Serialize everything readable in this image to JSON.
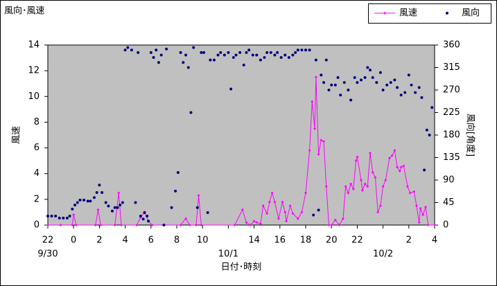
{
  "chart_data": {
    "type": "line",
    "title": "風向･風速",
    "xlabel": "日付･時刻",
    "ylabel": "風速",
    "y2label": "風向[角度]",
    "xlim": [
      0,
      30
    ],
    "ylim": [
      0,
      14
    ],
    "y2lim": [
      0,
      360
    ],
    "xticks": [
      {
        "value": 0,
        "label": "22"
      },
      {
        "value": 2,
        "label": "0"
      },
      {
        "value": 4,
        "label": "2"
      },
      {
        "value": 6,
        "label": "4"
      },
      {
        "value": 8,
        "label": "6"
      },
      {
        "value": 10,
        "label": "8"
      },
      {
        "value": 12,
        "label": "10"
      },
      {
        "value": 16,
        "label": "14"
      },
      {
        "value": 18,
        "label": "16"
      },
      {
        "value": 20,
        "label": "18"
      },
      {
        "value": 22,
        "label": "20"
      },
      {
        "value": 24,
        "label": "22"
      },
      {
        "value": 28,
        "label": "2"
      },
      {
        "value": 30,
        "label": "4"
      }
    ],
    "date_ticks": [
      {
        "value": 0,
        "label": "9/30"
      },
      {
        "value": 14,
        "label": "10/1"
      },
      {
        "value": 26,
        "label": "10/2"
      }
    ],
    "yticks": [
      0,
      2,
      4,
      6,
      8,
      10,
      12,
      14
    ],
    "y2ticks": [
      0,
      45,
      90,
      135,
      180,
      225,
      270,
      315,
      360
    ],
    "background": "#c0c0c0",
    "legend": "top-right",
    "series": [
      {
        "name": "風速",
        "color": "#ff00ff",
        "marker": "diamond",
        "x": [
          0,
          1,
          1.9,
          2.0,
          2.2,
          3.7,
          3.9,
          4.1,
          5.2,
          5.5,
          5.7,
          6.9,
          7.2,
          7.5,
          7.8,
          8.1,
          10.3,
          10.7,
          11.0,
          11.5,
          11.7,
          11.9,
          14.5,
          15.1,
          15.4,
          15.7,
          16.0,
          16.2,
          16.5,
          16.7,
          17.0,
          17.2,
          17.4,
          17.6,
          17.9,
          18.2,
          18.4,
          18.5,
          18.8,
          19.0,
          19.4,
          19.7,
          20.0,
          20.3,
          20.5,
          20.7,
          20.8,
          21.0,
          21.2,
          21.4,
          21.6,
          21.8,
          22.0,
          22.3,
          22.6,
          22.9,
          23.1,
          23.3,
          23.5,
          23.7,
          23.9,
          24.0,
          24.3,
          24.4,
          24.6,
          24.8,
          25.0,
          25.2,
          25.4,
          25.6,
          25.8,
          26.0,
          26.2,
          26.5,
          26.7,
          26.9,
          27.1,
          27.3,
          27.4,
          27.6,
          27.9,
          28.1,
          28.4,
          28.6,
          28.8,
          28.9,
          29.1,
          29.3,
          29.5,
          30
        ],
        "values": [
          0,
          0,
          0,
          0.8,
          0,
          0,
          1.2,
          0,
          0,
          2.5,
          0,
          0,
          0.6,
          1.0,
          0.3,
          0,
          0,
          0.5,
          0,
          0,
          2.3,
          0,
          0,
          1.2,
          0.2,
          0,
          0.3,
          0.2,
          0.1,
          1.5,
          0.9,
          1.8,
          2.5,
          1.8,
          0.5,
          1.8,
          1.0,
          0.3,
          1.5,
          0.9,
          0.5,
          1.0,
          2.5,
          5.8,
          9.6,
          7.5,
          11.5,
          5.5,
          6.6,
          6.5,
          3.0,
          0,
          0,
          0.4,
          0,
          0.5,
          3.0,
          2.5,
          3.2,
          2.8,
          5.0,
          5.3,
          3.5,
          2.7,
          3.2,
          3.0,
          5.6,
          4.1,
          3.7,
          1.0,
          1.5,
          3.0,
          3.5,
          5.2,
          5.4,
          5.8,
          4.5,
          4.2,
          4.5,
          4.6,
          3.0,
          2.5,
          2.6,
          1.5,
          0.2,
          1.3,
          0.8,
          1.4,
          0,
          0
        ]
      },
      {
        "name": "風向",
        "color": "#000080",
        "marker": "dot",
        "axis": "y2",
        "x": [
          0,
          0.3,
          0.6,
          0.9,
          1.2,
          1.5,
          1.7,
          1.9,
          2.1,
          2.3,
          2.5,
          2.8,
          3.1,
          3.3,
          3.6,
          3.8,
          4.0,
          4.2,
          4.5,
          4.7,
          5.0,
          5.2,
          5.4,
          5.6,
          5.8,
          6.0,
          6.2,
          6.5,
          6.8,
          7.0,
          7.2,
          7.4,
          7.5,
          7.7,
          7.8,
          8.0,
          8.2,
          8.4,
          8.6,
          8.8,
          9.0,
          9.2,
          9.6,
          9.9,
          10.1,
          10.3,
          10.5,
          10.7,
          10.9,
          11.1,
          11.3,
          11.6,
          11.9,
          12.1,
          12.4,
          12.6,
          12.9,
          13.2,
          13.4,
          13.7,
          14.0,
          14.2,
          14.4,
          14.6,
          14.9,
          15.2,
          15.4,
          15.6,
          15.9,
          16.2,
          16.5,
          16.8,
          17.0,
          17.3,
          17.6,
          17.8,
          18.1,
          18.4,
          18.7,
          19.0,
          19.2,
          19.4,
          19.7,
          20.0,
          20.3,
          20.6,
          20.8,
          21.0,
          21.2,
          21.4,
          21.6,
          21.8,
          22.0,
          22.3,
          22.5,
          22.7,
          23.0,
          23.3,
          23.5,
          23.8,
          24.0,
          24.3,
          24.6,
          24.8,
          25.0,
          25.2,
          25.5,
          25.8,
          26.0,
          26.3,
          26.6,
          26.9,
          27.1,
          27.4,
          27.7,
          28.0,
          28.2,
          28.5,
          28.8,
          29.0,
          29.2,
          29.4,
          29.6,
          29.8
        ],
        "values": [
          18,
          18,
          18,
          14,
          14,
          14,
          18,
          32,
          40,
          45,
          50,
          50,
          48,
          48,
          55,
          65,
          80,
          65,
          45,
          38,
          28,
          35,
          35,
          40,
          45,
          350,
          355,
          350,
          45,
          345,
          18,
          12,
          25,
          18,
          8,
          345,
          335,
          350,
          325,
          340,
          0,
          352,
          35,
          68,
          105,
          345,
          325,
          340,
          315,
          225,
          355,
          35,
          345,
          345,
          25,
          330,
          330,
          340,
          345,
          340,
          345,
          272,
          335,
          340,
          345,
          320,
          345,
          350,
          340,
          340,
          330,
          335,
          345,
          345,
          340,
          345,
          335,
          340,
          335,
          340,
          345,
          350,
          350,
          350,
          350,
          20,
          330,
          30,
          300,
          285,
          330,
          270,
          280,
          280,
          295,
          260,
          285,
          270,
          250,
          295,
          285,
          290,
          295,
          315,
          310,
          295,
          285,
          305,
          270,
          280,
          285,
          290,
          275,
          260,
          265,
          300,
          280,
          265,
          275,
          255,
          110,
          190,
          180,
          235
        ]
      }
    ]
  }
}
